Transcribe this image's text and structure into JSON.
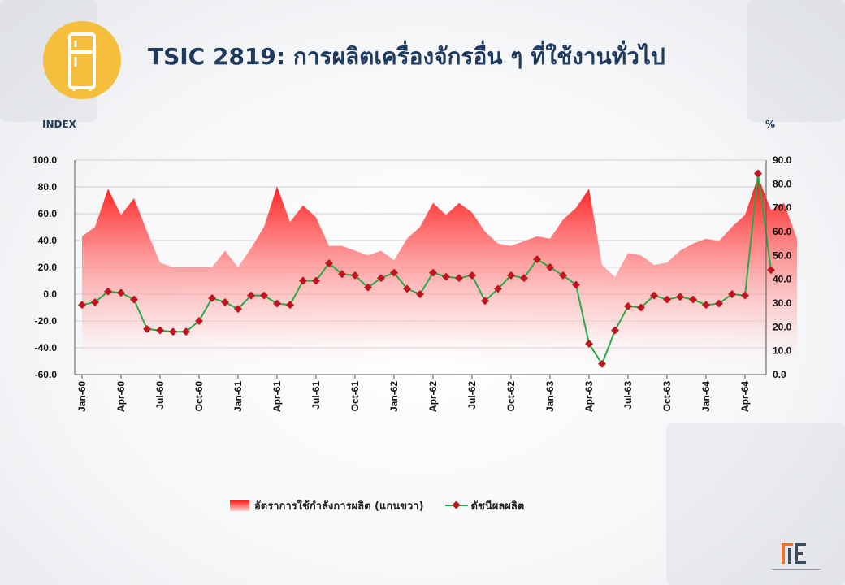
{
  "title": "TSIC 2819: การผลิตเครื่องจักรอื่น ๆ ที่ใช้งานทั่วไป",
  "icon": "refrigerator-icon",
  "colors": {
    "accent": "#f5be3d",
    "title": "#1f3a5f",
    "area": "#ff1a1a",
    "line": "#2aa84a",
    "marker": "#c0141c"
  },
  "chart_data": {
    "type": "line",
    "ylabel_left": "INDEX",
    "ylabel_right": "%",
    "ylim_left": [
      -60,
      100
    ],
    "ylim_right": [
      0,
      90
    ],
    "yticks_left": [
      "100.0",
      "80.0",
      "60.0",
      "40.0",
      "20.0",
      "0.0",
      "-20.0",
      "-40.0",
      "-60.0"
    ],
    "yticks_right": [
      "90.0",
      "80.0",
      "70.0",
      "60.0",
      "50.0",
      "40.0",
      "30.0",
      "20.0",
      "10.0",
      "0.0"
    ],
    "xtick_labels": [
      "Jan-60",
      "Apr-60",
      "Jul-60",
      "Oct-60",
      "Jan-61",
      "Apr-61",
      "Jul-61",
      "Oct-61",
      "Jan-62",
      "Apr-62",
      "Jul-62",
      "Oct-62",
      "Jan-63",
      "Apr-63",
      "Jul-63",
      "Oct-63",
      "Jan-64",
      "Apr-64"
    ],
    "grid": true,
    "legend_position": "bottom",
    "series": [
      {
        "name": "อัตราการใช้กำลังการผลิต (แกนขวา)",
        "axis": "right",
        "kind": "area",
        "values": [
          58,
          62,
          78,
          67,
          74,
          60,
          47,
          45,
          45,
          45,
          45,
          52,
          45,
          53,
          62,
          79,
          64,
          71,
          66,
          54,
          54,
          52,
          50,
          52,
          48,
          57,
          62,
          72,
          67,
          72,
          68,
          60,
          55,
          54,
          56,
          58,
          57,
          65,
          70,
          78,
          46,
          41,
          51,
          50,
          46,
          47,
          52,
          55,
          57,
          56,
          62,
          67,
          83,
          69,
          72,
          57
        ]
      },
      {
        "name": "ดัชนีผลผลิต",
        "axis": "left",
        "kind": "line",
        "values": [
          -8,
          -6,
          2,
          1,
          -4,
          -26,
          -27,
          -28,
          -28,
          -20,
          -3,
          -6,
          -11,
          -1,
          -1,
          -7,
          -8,
          10,
          10,
          23,
          15,
          14,
          5,
          12,
          16,
          4,
          0,
          16,
          13,
          12,
          14,
          -5,
          4,
          14,
          12,
          26,
          20,
          14,
          7,
          -37,
          -52,
          -27,
          -9,
          -10,
          -1,
          -4,
          -2,
          -4,
          -8,
          -7,
          0,
          -1,
          90,
          18
        ]
      }
    ]
  },
  "legend": {
    "area_label": "อัตราการใช้กำลังการผลิต (แกนขวา)",
    "line_label": "ดัชนีผลผลิต"
  },
  "logo_text": "OIE"
}
